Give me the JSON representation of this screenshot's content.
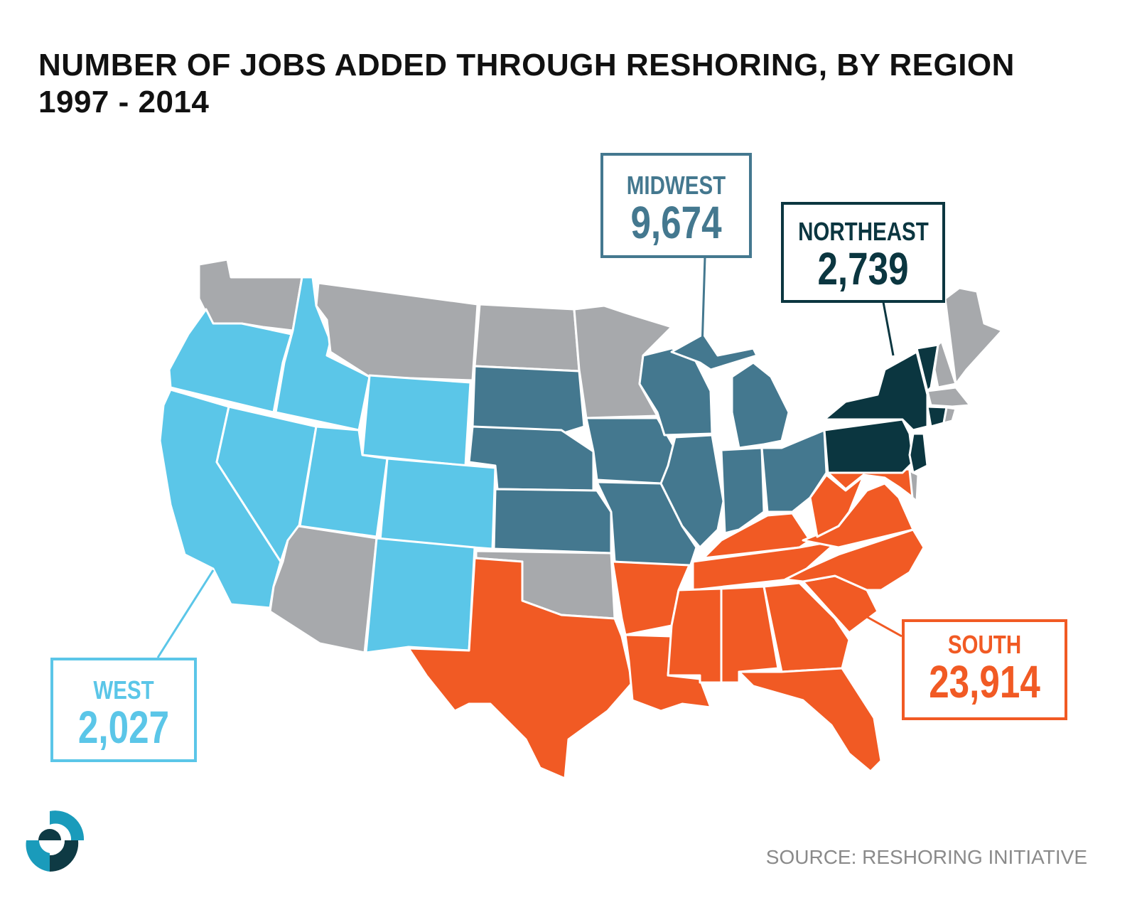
{
  "title": {
    "line1": "NUMBER OF JOBS ADDED THROUGH RESHORING, BY REGION",
    "line2": "1997 - 2014"
  },
  "regions": {
    "west": {
      "name": "WEST",
      "value": "2,027",
      "color": "#5bc6e8"
    },
    "midwest": {
      "name": "MIDWEST",
      "value": "9,674",
      "color": "#44788f"
    },
    "northeast": {
      "name": "NORTHEAST",
      "value": "2,739",
      "color": "#0b3640"
    },
    "south": {
      "name": "SOUTH",
      "value": "23,914",
      "color": "#f15a24"
    },
    "no_data_color": "#a7a9ac"
  },
  "source": "SOURCE: RESHORING INITIATIVE",
  "logo": {
    "colors": [
      "#1a9bbb",
      "#0e3a44"
    ]
  }
}
